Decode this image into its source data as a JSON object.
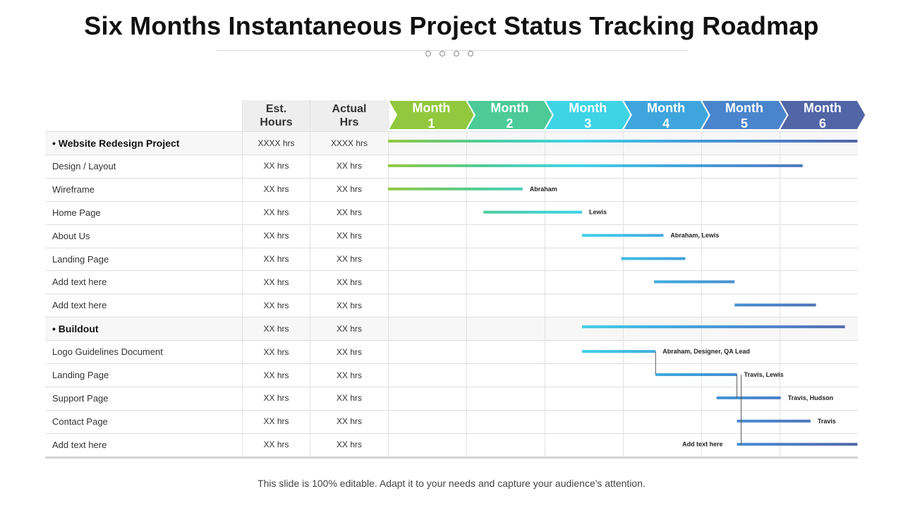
{
  "title": "Six Months Instantaneous Project Status Tracking Roadmap",
  "header": {
    "est_line1": "Est.",
    "est_line2": "Hours",
    "act_line1": "Actual",
    "act_line2": "Hrs"
  },
  "months": [
    {
      "line1": "Month",
      "line2": "1",
      "color": "#92c83e"
    },
    {
      "line1": "Month",
      "line2": "2",
      "color": "#4ccb97"
    },
    {
      "line1": "Month",
      "line2": "3",
      "color": "#3fd3e6"
    },
    {
      "line1": "Month",
      "line2": "4",
      "color": "#3fa6dd"
    },
    {
      "line1": "Month",
      "line2": "5",
      "color": "#4a84cc"
    },
    {
      "line1": "Month",
      "line2": "6",
      "color": "#5165a7"
    }
  ],
  "rows": [
    {
      "task": "• Website Redesign Project",
      "group": true,
      "est": "XXXX  hrs",
      "actual": "XXXX  hrs",
      "bar": {
        "start": 0.0,
        "end": 6.0,
        "label": ""
      }
    },
    {
      "task": "Design / Layout",
      "group": false,
      "est": "XX  hrs",
      "actual": "XX  hrs",
      "bar": {
        "start": 0.0,
        "end": 5.3,
        "label": ""
      }
    },
    {
      "task": "Wireframe",
      "group": false,
      "est": "XX  hrs",
      "actual": "XX  hrs",
      "bar": {
        "start": 0.0,
        "end": 1.72,
        "label": "Abraham"
      }
    },
    {
      "task": "Home Page",
      "group": false,
      "est": "XX  hrs",
      "actual": "XX  hrs",
      "bar": {
        "start": 1.22,
        "end": 2.48,
        "label": "Lewis"
      }
    },
    {
      "task": "About Us",
      "group": false,
      "est": "XX  hrs",
      "actual": "XX  hrs",
      "bar": {
        "start": 2.48,
        "end": 3.52,
        "label": "Abraham, Lewis"
      }
    },
    {
      "task": "Landing Page",
      "group": false,
      "est": "XX  hrs",
      "actual": "XX  hrs",
      "bar": {
        "start": 2.98,
        "end": 3.8,
        "label": ""
      }
    },
    {
      "task": "Add text here",
      "group": false,
      "est": "XX  hrs",
      "actual": "XX  hrs",
      "bar": {
        "start": 3.4,
        "end": 4.43,
        "label": ""
      }
    },
    {
      "task": "Add text here",
      "group": false,
      "est": "XX  hrs",
      "actual": "XX  hrs",
      "bar": {
        "start": 4.43,
        "end": 5.47,
        "label": ""
      }
    },
    {
      "task": "• Buildout",
      "group": true,
      "est": "XX  hrs",
      "actual": "XX  hrs",
      "bar": {
        "start": 2.48,
        "end": 5.84,
        "label": ""
      }
    },
    {
      "task": "Logo Guidelines Document",
      "group": false,
      "est": "XX  hrs",
      "actual": "XX  hrs",
      "bar": {
        "start": 2.48,
        "end": 3.42,
        "label": "Abraham, Designer, QA Lead"
      }
    },
    {
      "task": "Landing Page",
      "group": false,
      "est": "XX  hrs",
      "actual": "XX  hrs",
      "bar": {
        "start": 3.42,
        "end": 4.46,
        "label": "Travis, Lewis"
      }
    },
    {
      "task": "Support Page",
      "group": false,
      "est": "XX  hrs",
      "actual": "XX  hrs",
      "bar": {
        "start": 4.2,
        "end": 5.02,
        "label": "Travis, Hudson"
      }
    },
    {
      "task": "Contact Page",
      "group": false,
      "est": "XX  hrs",
      "actual": "XX  hrs",
      "bar": {
        "start": 4.46,
        "end": 5.4,
        "label": "Travis"
      }
    },
    {
      "task": "Add text here",
      "group": false,
      "est": "XX  hrs",
      "actual": "XX  hrs",
      "bar": {
        "start": 4.46,
        "end": 6.0,
        "label": "Add text here",
        "label_side": "left"
      }
    }
  ],
  "footer": "This slide is 100% editable. Adapt it to your needs and capture your audience's attention."
}
